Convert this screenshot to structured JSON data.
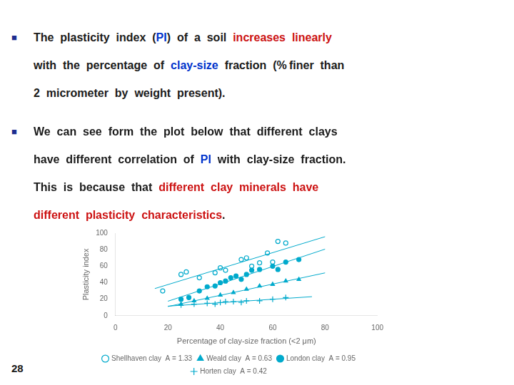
{
  "chart_data": {
    "type": "scatter",
    "bullet_mark": "■",
    "bullet_color": "#1e2d8f",
    "bullets": [
      [
        [
          {
            "text": "The  plasticity  index  (",
            "color": "#1a1a1a"
          },
          {
            "text": "PI",
            "color": "#0033cc"
          },
          {
            "text": ")  of  a  soil  ",
            "color": "#1a1a1a"
          },
          {
            "text": "increases  linearly",
            "color": "#cc1111"
          }
        ],
        [
          {
            "text": "with  the  percentage  of  ",
            "color": "#1a1a1a"
          },
          {
            "text": "clay-size",
            "color": "#0033cc"
          },
          {
            "text": "  fraction  (% finer  than",
            "color": "#1a1a1a"
          }
        ],
        [
          {
            "text": "2  micrometer  by  weight  present).",
            "color": "#1a1a1a"
          }
        ]
      ],
      [
        [
          {
            "text": "We  can  see  form  the  plot  below  that  different  clays",
            "color": "#1a1a1a"
          }
        ],
        [
          {
            "text": "have  different  correlation  of  ",
            "color": "#1a1a1a"
          },
          {
            "text": "PI",
            "color": "#0033cc"
          },
          {
            "text": "  with  clay-size  fraction.",
            "color": "#1a1a1a"
          }
        ],
        [
          {
            "text": "This  is  because  that  ",
            "color": "#1a1a1a"
          },
          {
            "text": "different  clay  minerals  have",
            "color": "#cc1111"
          }
        ],
        [
          {
            "text": "different  plasticity  characteristics",
            "color": "#cc1111"
          },
          {
            "text": ".",
            "color": "#1a1a1a"
          }
        ]
      ]
    ],
    "page_number": "28",
    "xlabel": "Percentage of clay-size fraction (<2 μm)",
    "ylabel": "Plasticity index",
    "xlim": [
      0,
      100
    ],
    "ylim": [
      0,
      100
    ],
    "xticks": [
      0,
      20,
      40,
      60,
      80,
      100
    ],
    "yticks": [
      0,
      20,
      40,
      60,
      80,
      100
    ],
    "grid": false,
    "legend": "bottom",
    "series": [
      {
        "name": "Shellhaven clay  A = 1.33",
        "color": "#00aacc",
        "marker": "open_circle",
        "x": [
          18,
          25,
          27,
          32,
          38,
          40,
          42,
          48,
          50,
          52,
          55,
          58,
          60,
          62,
          65
        ],
        "values": [
          30,
          50,
          53,
          46,
          52,
          58,
          55,
          68,
          70,
          60,
          64,
          76,
          65,
          90,
          88
        ],
        "trend": {
          "x": [
            15,
            80
          ],
          "values": [
            32.864,
            95.689
          ]
        }
      },
      {
        "name": "Weald clay  A = 0.63",
        "color": "#00aacc",
        "marker": "triangle",
        "x": [
          25,
          30,
          35,
          40,
          45,
          50,
          55,
          60,
          65,
          70
        ],
        "values": [
          14,
          18,
          21,
          25,
          28,
          32,
          36,
          38,
          42,
          44
        ],
        "trend": {
          "x": [
            20,
            80
          ],
          "values": [
            11.133,
            51.861
          ]
        }
      },
      {
        "name": "London clay  A = 0.95",
        "color": "#00aacc",
        "marker": "circle",
        "x": [
          25,
          28,
          32,
          35,
          38,
          40,
          42,
          44,
          46,
          48,
          50,
          52,
          55,
          60,
          62,
          65,
          70
        ],
        "values": [
          20,
          22,
          30,
          35,
          36,
          40,
          42,
          46,
          48,
          44,
          50,
          55,
          56,
          60,
          56,
          65,
          68
        ],
        "trend": {
          "x": [
            20,
            80
          ],
          "values": [
            17.523,
            80.591
          ]
        }
      },
      {
        "name": "Horten clay  A = 0.42",
        "color": "#00aacc",
        "marker": "plus",
        "x": [
          25,
          30,
          35,
          38,
          40,
          42,
          45,
          48,
          50,
          55,
          60,
          65
        ],
        "values": [
          13,
          14,
          15,
          14,
          16,
          17,
          17,
          16,
          18,
          18,
          20,
          22
        ],
        "trend": {
          "x": [
            20,
            75
          ],
          "values": [
            11.579,
            23.039
          ]
        }
      }
    ]
  }
}
